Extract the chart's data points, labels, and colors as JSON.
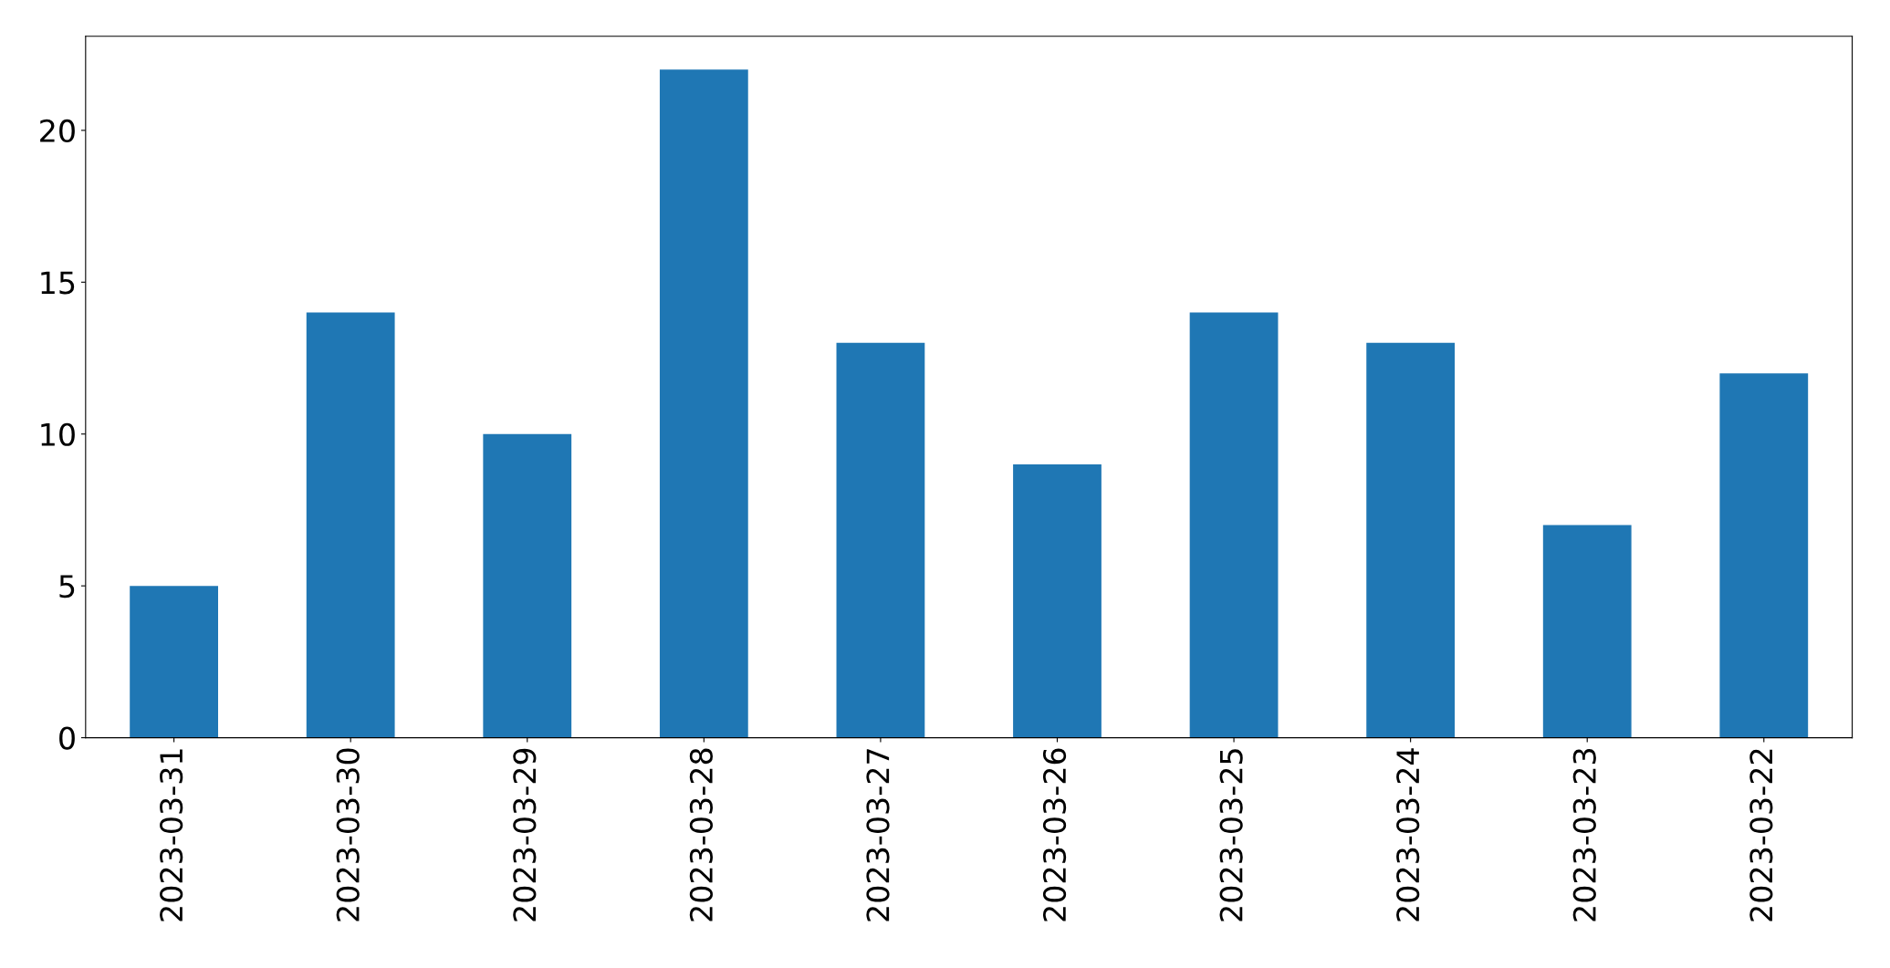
{
  "chart_data": {
    "type": "bar",
    "categories": [
      "2023-03-31",
      "2023-03-30",
      "2023-03-29",
      "2023-03-28",
      "2023-03-27",
      "2023-03-26",
      "2023-03-25",
      "2023-03-24",
      "2023-03-23",
      "2023-03-22"
    ],
    "values": [
      5,
      14,
      10,
      22,
      13,
      9,
      14,
      13,
      7,
      12
    ],
    "color": "#1f77b4",
    "ylim": [
      0,
      23.1
    ],
    "yticks": [
      0,
      5,
      10,
      15,
      20
    ],
    "grid": false
  }
}
